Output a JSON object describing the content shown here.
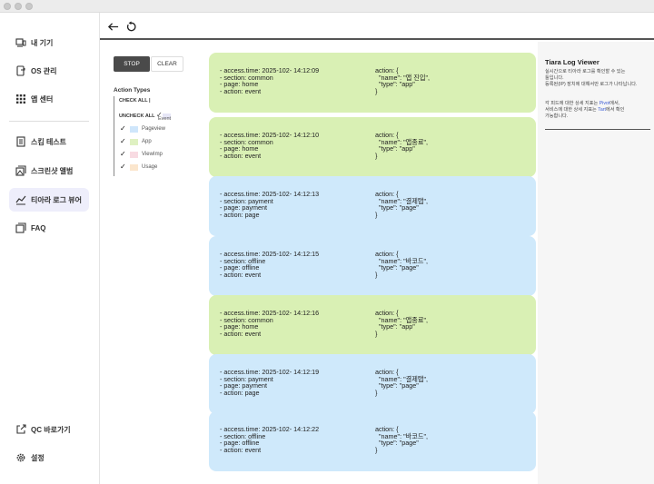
{
  "colors": {
    "active_nav_bg": "#eeeefb",
    "card_green": "#d9f0b4",
    "card_blue": "#cfe9fb",
    "swatch_pageview": "#cfe6fb",
    "swatch_app": "#dff1c2",
    "swatch_viewimp": "#f8dbe2",
    "swatch_usage": "#fbe6cd",
    "link_blue": "#3a5ad6"
  },
  "sidebar": {
    "items": [
      {
        "label": "내 기기",
        "icon": "device-icon"
      },
      {
        "label": "OS 관리",
        "icon": "os-settings-icon"
      },
      {
        "label": "앱 센터",
        "icon": "grid-icon"
      },
      {
        "label": "스킴 테스트",
        "icon": "document-icon"
      },
      {
        "label": "스크린샷 앨범",
        "icon": "album-icon"
      },
      {
        "label": "티아라 로그 뷰어",
        "icon": "log-chart-icon"
      },
      {
        "label": "FAQ",
        "icon": "faq-icon"
      },
      {
        "label": "QC 바로가기",
        "icon": "external-link-icon"
      },
      {
        "label": "설정",
        "icon": "gear-icon"
      }
    ]
  },
  "filter": {
    "stop_label": "STOP",
    "clear_label": "CLEAR",
    "title": "Action Types",
    "check_all": "CHECK ALL |",
    "uncheck_all": "UNCHECK ALL",
    "event_label": "Event",
    "types": [
      {
        "label": "Pageview",
        "checked": true
      },
      {
        "label": "App",
        "checked": true
      },
      {
        "label": "ViewImp",
        "checked": true
      },
      {
        "label": "Usage",
        "checked": true
      }
    ],
    "event_checked": true
  },
  "logs": [
    {
      "color": "green",
      "left": [
        "- access.time: 2025-102- 14:12:09",
        "- section: common",
        "- page: home",
        "- action: event"
      ],
      "right": [
        "action: {",
        "  \"name\": \"앱 진입\",",
        "  \"type\": \"app\"",
        "}"
      ]
    },
    {
      "color": "green",
      "left": [
        "- access.time: 2025-102- 14:12:10",
        "- section: common",
        "- page: home",
        "- action: event"
      ],
      "right": [
        "action: {",
        "  \"name\": \"앱종료\",",
        "  \"type\": \"app\"",
        "}"
      ]
    },
    {
      "color": "blue",
      "left": [
        "- access.time: 2025-102- 14:12:13",
        "- section: payment",
        "- page: payment",
        "- action: page"
      ],
      "right": [
        "action: {",
        "  \"name\": \"결제탭\",",
        "  \"type\": \"page\"",
        "}"
      ]
    },
    {
      "color": "blue",
      "left": [
        "- access.time: 2025-102- 14:12:15",
        "- section: offline",
        "- page: offline",
        "- action: event"
      ],
      "right": [
        "action: {",
        "  \"name\": \"바코드\",",
        "  \"type\": \"page\"",
        "}"
      ]
    },
    {
      "color": "green",
      "left": [
        "- access.time: 2025-102- 14:12:16",
        "- section: common",
        "- page: home",
        "- action: event"
      ],
      "right": [
        "action: {",
        "  \"name\": \"앱종료\",",
        "  \"type\": \"app\"",
        "}"
      ]
    },
    {
      "color": "blue",
      "left": [
        "- access.time: 2025-102- 14:12:19",
        "- section: payment",
        "- page: payment",
        "- action: page"
      ],
      "right": [
        "action: {",
        "  \"name\": \"결제탭\",",
        "  \"type\": \"page\"",
        "}"
      ]
    },
    {
      "color": "blue",
      "left": [
        "- access.time: 2025-102- 14:12:22",
        "- section: offline",
        "- page: offline",
        "- action: event"
      ],
      "right": [
        "action: {",
        "  \"name\": \"바코드\",",
        "  \"type\": \"page\"",
        "}"
      ]
    }
  ],
  "right_panel": {
    "title": "Tiara Log Viewer",
    "para1": [
      "실시간으로 티아라 로그를 확인할 수 있는",
      "툴입니다.",
      "등록된(IP) 장치에 대해서만 로그가 나타납니다."
    ],
    "para2_prefix1": "각 피드에 대한 상세 지표는 ",
    "link1": "Pivot",
    "para2_suffix1": "에서,",
    "para2_prefix2": "서비스에 대한 상세 지표는 ",
    "link2": "Tart",
    "para2_suffix2": "에서 확인",
    "para2_end": "가능합니다."
  }
}
